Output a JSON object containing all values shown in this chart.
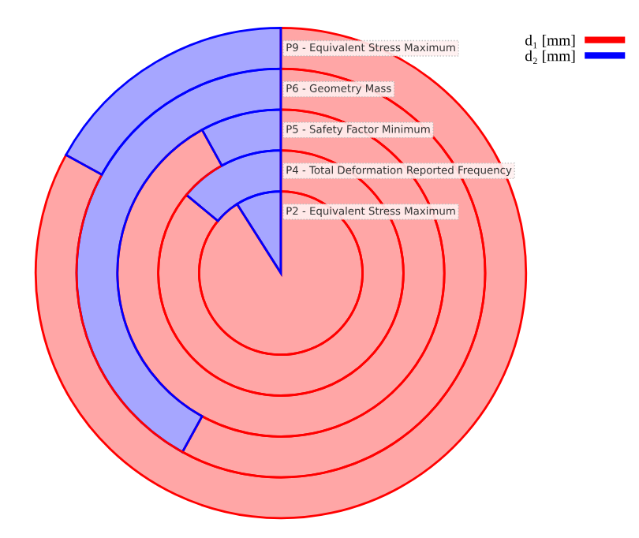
{
  "chart_data": {
    "type": "donut",
    "categories": [
      "d₁ [mm]",
      "d₂ [mm]"
    ],
    "colors": [
      "#ff0000",
      "#0000ff"
    ],
    "series": [
      {
        "name": "P2 - Equivalent Stress Maximum",
        "values": [
          91,
          9
        ]
      },
      {
        "name": "P4 - Total Deformation Reported Frequency",
        "values": [
          86,
          14
        ]
      },
      {
        "name": "P5 - Safety Factor Minimum",
        "values": [
          92,
          8
        ]
      },
      {
        "name": "P6 - Geometry Mass",
        "values": [
          58,
          42
        ]
      },
      {
        "name": "P9 - Equivalent Stress Maximum",
        "values": [
          83,
          17
        ]
      }
    ],
    "legend": "top right"
  }
}
